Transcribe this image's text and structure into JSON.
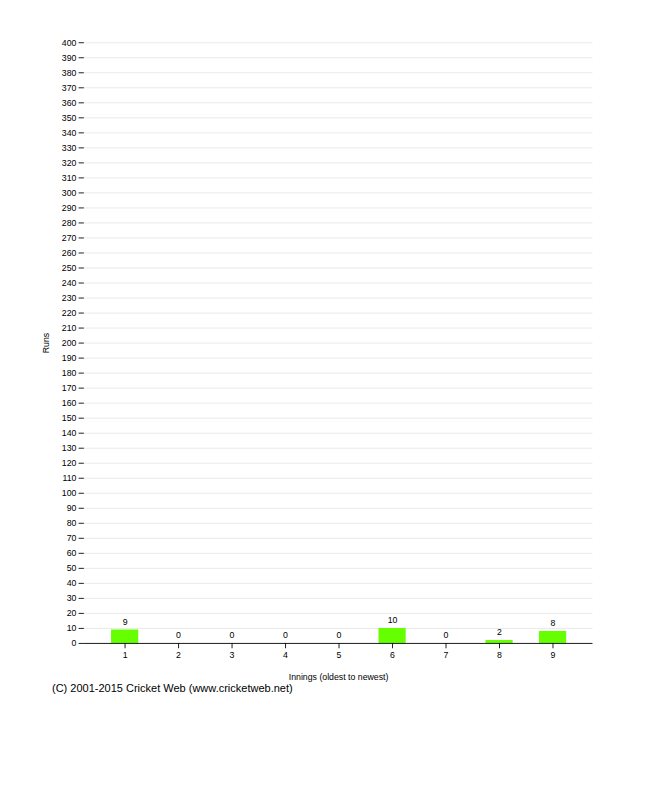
{
  "chart_data": {
    "type": "bar",
    "xlabel": "Innings (oldest to newest)",
    "ylabel": "Runs",
    "categories": [
      1,
      2,
      3,
      4,
      5,
      6,
      7,
      8,
      9
    ],
    "values": [
      9,
      0,
      0,
      0,
      0,
      10,
      0,
      2,
      8
    ],
    "color": "#66ff00",
    "ylim": [
      0,
      400
    ],
    "yticks": [
      0,
      10,
      20,
      30,
      40,
      50,
      60,
      70,
      80,
      90,
      100,
      110,
      120,
      130,
      140,
      150,
      160,
      170,
      180,
      190,
      200,
      210,
      220,
      230,
      240,
      250,
      260,
      270,
      280,
      290,
      300,
      310,
      320,
      330,
      340,
      350,
      360,
      370,
      380,
      390,
      400
    ],
    "grid": true,
    "data_labels": true,
    "footer": "(C) 2001-2015 Cricket Web (www.cricketweb.net)"
  }
}
